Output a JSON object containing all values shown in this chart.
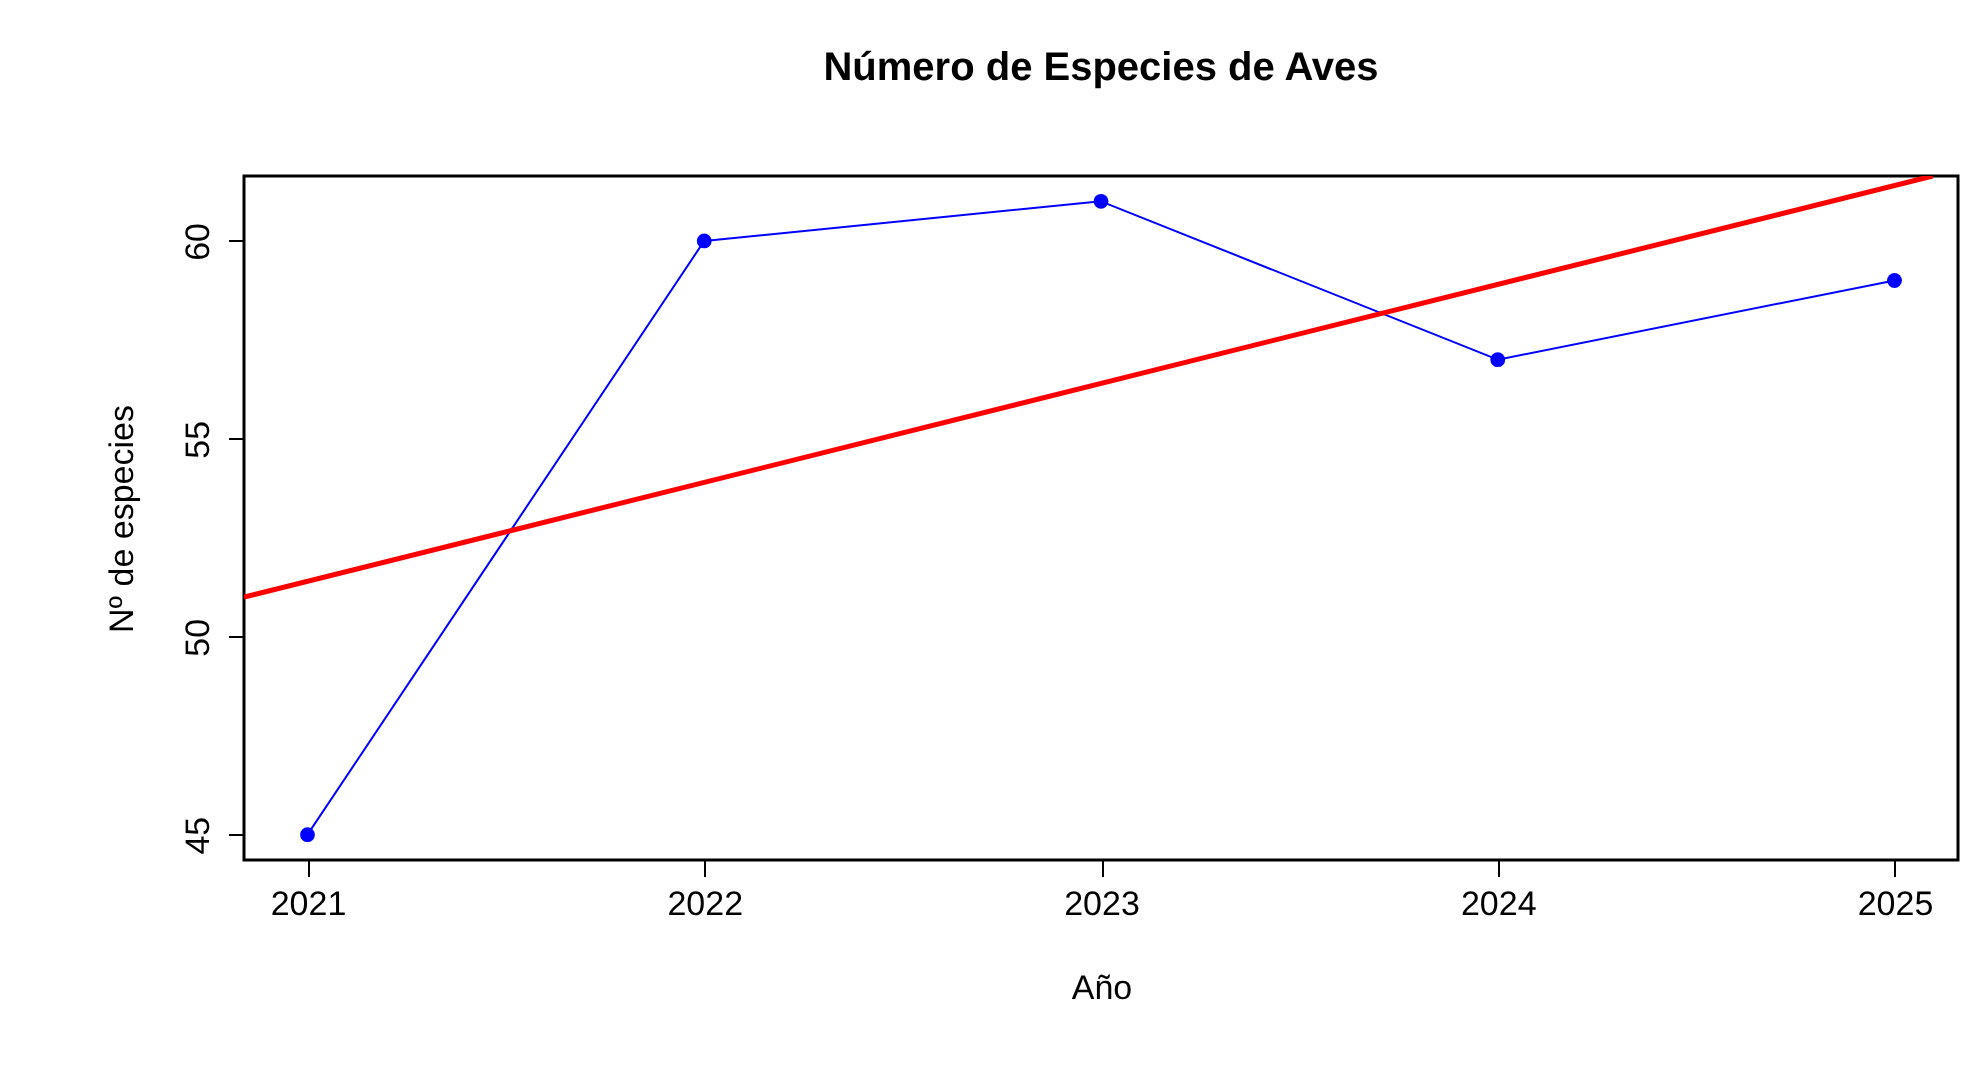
{
  "chart_data": {
    "type": "line",
    "title": "Número de Especies de Aves",
    "xlabel": "Año",
    "ylabel": "Nº de especies",
    "x": [
      2021,
      2022,
      2023,
      2024,
      2025
    ],
    "series": [
      {
        "color": "#0000ff",
        "marker": "circle",
        "values": [
          45,
          60,
          61,
          57,
          59
        ]
      },
      {
        "type": "line",
        "color": "#ff0000",
        "marker": "none",
        "x": [
          2020.84,
          2025.096
        ],
        "values": [
          51.0,
          61.64
        ]
      }
    ],
    "xlim": [
      2020.84,
      2025.16
    ],
    "xticks": [
      2021,
      2022,
      2023,
      2024,
      2025
    ],
    "ylim": [
      44.36,
      61.64
    ],
    "yticks": [
      45,
      50,
      55,
      60
    ],
    "grid": false
  }
}
